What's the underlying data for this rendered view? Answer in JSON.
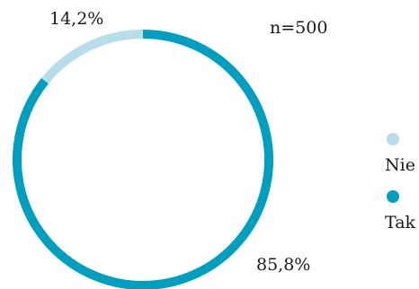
{
  "chart_data": {
    "type": "pie",
    "style": "donut-ring",
    "sample_size_label": "n=500",
    "slices": [
      {
        "name": "Tak",
        "value": 85.8,
        "label": "85,8%",
        "color": "#009fbf"
      },
      {
        "name": "Nie",
        "value": 14.2,
        "label": "14,2%",
        "color": "#b6dde9"
      }
    ],
    "legend": {
      "placement": "right",
      "items": [
        {
          "label": "Nie",
          "color": "#b6dde9"
        },
        {
          "label": "Tak",
          "color": "#009fbf"
        }
      ]
    }
  }
}
